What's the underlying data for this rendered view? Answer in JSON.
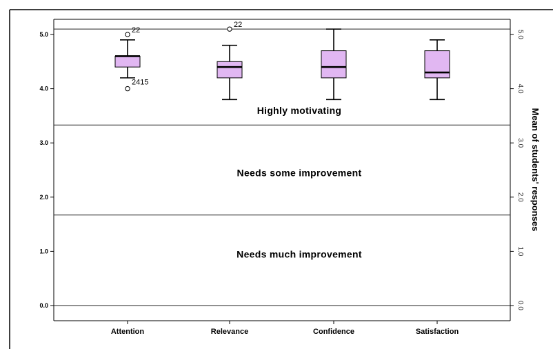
{
  "chart_data": {
    "type": "box",
    "ylim": [
      -0.3,
      5.2
    ],
    "yticks": [
      0.0,
      1.0,
      2.0,
      3.0,
      4.0,
      5.0
    ],
    "ytick_labels": [
      "0.0",
      "1.0",
      "2.0",
      "3.0",
      "4.0",
      "5.0"
    ],
    "right_tick_labels": [
      "0.0",
      "1.0",
      "2.0",
      "3.0",
      "4.0",
      "5.0"
    ],
    "ylabel_right": "Mean of students' responses",
    "categories": [
      "Attention",
      "Relevance",
      "Confidence",
      "Satisfaction"
    ],
    "box_color": "#e1b7f2",
    "reference_lines": [
      0.0,
      1.67,
      3.33,
      5.1
    ],
    "zones": [
      {
        "label": "Highly motivating",
        "y": 3.6
      },
      {
        "label": "Needs some improvement",
        "y": 2.45
      },
      {
        "label": "Needs much improvement",
        "y": 0.95
      }
    ],
    "boxes": [
      {
        "name": "Attention",
        "whisker_low": 4.2,
        "q1": 4.4,
        "median": 4.6,
        "q3": 4.6,
        "whisker_high": 4.9,
        "outliers": [
          {
            "value": 5.0,
            "label": "22"
          },
          {
            "value": 4.0,
            "label": "2415"
          }
        ]
      },
      {
        "name": "Relevance",
        "whisker_low": 3.8,
        "q1": 4.2,
        "median": 4.4,
        "q3": 4.5,
        "whisker_high": 4.8,
        "outliers": [
          {
            "value": 5.1,
            "label": "22"
          }
        ]
      },
      {
        "name": "Confidence",
        "whisker_low": 3.8,
        "q1": 4.2,
        "median": 4.4,
        "q3": 4.7,
        "whisker_high": 5.1,
        "outliers": []
      },
      {
        "name": "Satisfaction",
        "whisker_low": 3.8,
        "q1": 4.2,
        "median": 4.3,
        "q3": 4.7,
        "whisker_high": 4.9,
        "outliers": []
      }
    ]
  }
}
